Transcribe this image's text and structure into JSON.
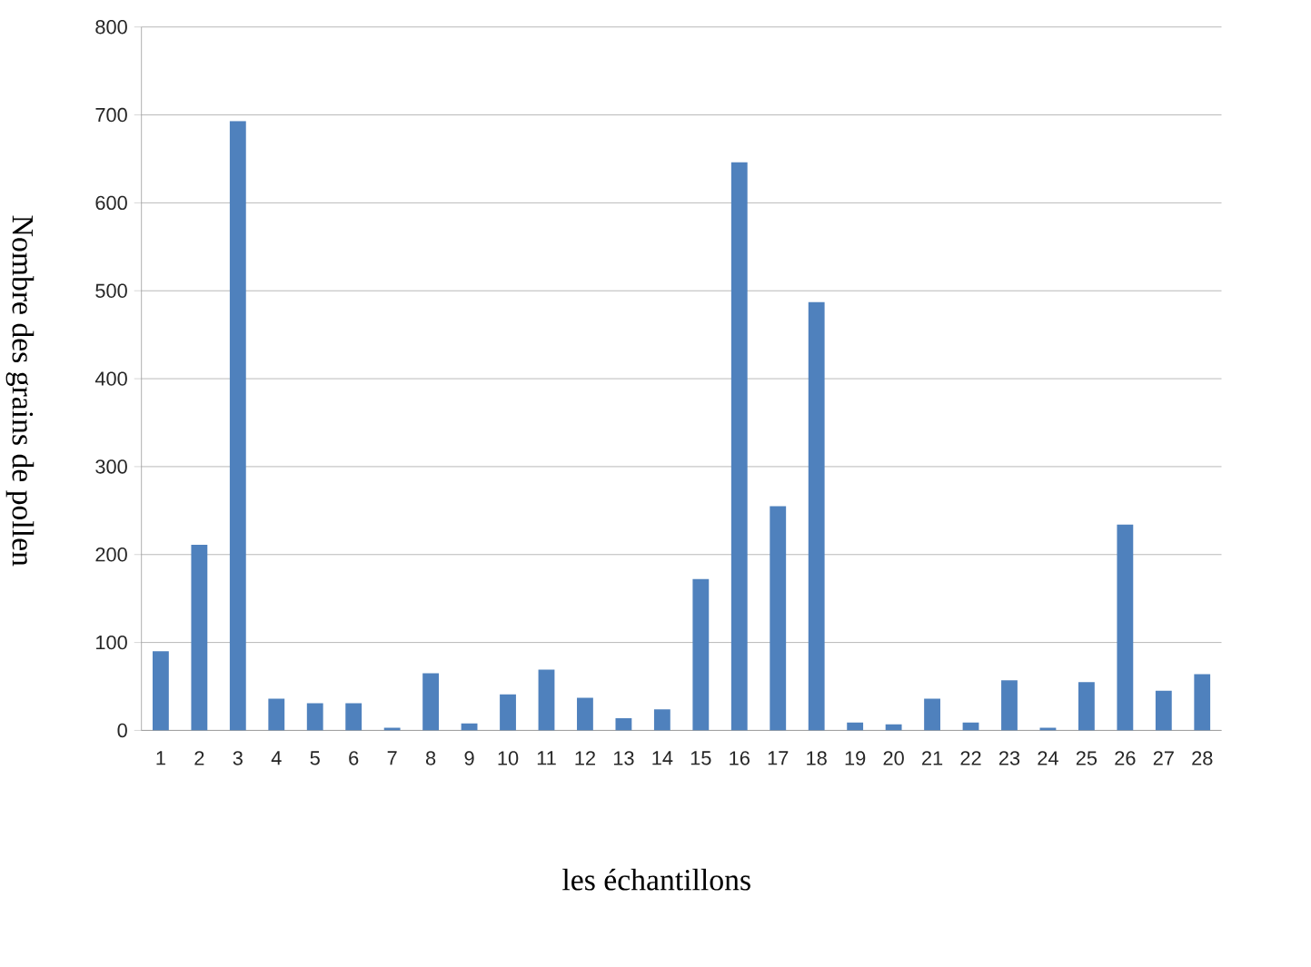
{
  "chart_data": {
    "type": "bar",
    "xlabel": "les échantillons",
    "ylabel": "Nombre des grains de pollen",
    "categories": [
      "1",
      "2",
      "3",
      "4",
      "5",
      "6",
      "7",
      "8",
      "9",
      "10",
      "11",
      "12",
      "13",
      "14",
      "15",
      "16",
      "17",
      "18",
      "19",
      "20",
      "21",
      "22",
      "23",
      "24",
      "25",
      "26",
      "27",
      "28"
    ],
    "values": [
      90,
      211,
      693,
      36,
      31,
      31,
      3,
      65,
      8,
      41,
      69,
      37,
      14,
      24,
      172,
      646,
      255,
      487,
      9,
      7,
      36,
      9,
      57,
      3,
      55,
      234,
      45,
      64
    ],
    "color": "#4f81bd",
    "ylim": [
      0,
      800
    ],
    "yticks": [
      0,
      100,
      200,
      300,
      400,
      500,
      600,
      700,
      800
    ],
    "grid": "y"
  }
}
